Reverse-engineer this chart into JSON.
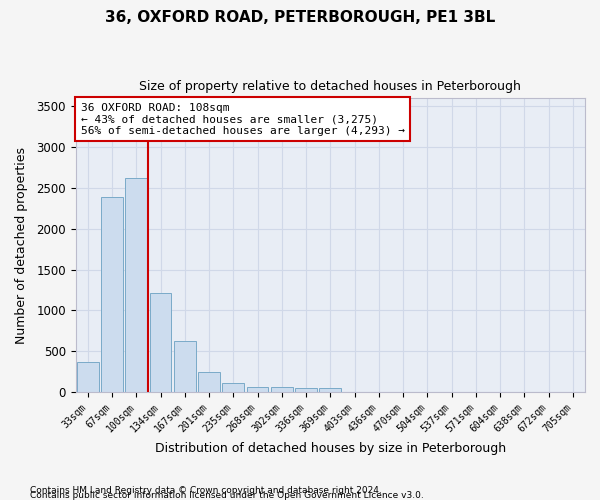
{
  "title1": "36, OXFORD ROAD, PETERBOROUGH, PE1 3BL",
  "title2": "Size of property relative to detached houses in Peterborough",
  "xlabel": "Distribution of detached houses by size in Peterborough",
  "ylabel": "Number of detached properties",
  "footnote1": "Contains HM Land Registry data © Crown copyright and database right 2024.",
  "footnote2": "Contains public sector information licensed under the Open Government Licence v3.0.",
  "bar_labels": [
    "33sqm",
    "67sqm",
    "100sqm",
    "134sqm",
    "167sqm",
    "201sqm",
    "235sqm",
    "268sqm",
    "302sqm",
    "336sqm",
    "369sqm",
    "403sqm",
    "436sqm",
    "470sqm",
    "504sqm",
    "537sqm",
    "571sqm",
    "604sqm",
    "638sqm",
    "672sqm",
    "705sqm"
  ],
  "bar_values": [
    370,
    2390,
    2620,
    1210,
    620,
    250,
    105,
    65,
    55,
    50,
    45,
    0,
    0,
    0,
    0,
    0,
    0,
    0,
    0,
    0,
    0
  ],
  "bar_color": "#ccdcee",
  "bar_edgecolor": "#7aaac8",
  "line_color": "#cc0000",
  "annotation_line1": "36 OXFORD ROAD: 108sqm",
  "annotation_line2": "← 43% of detached houses are smaller (3,275)",
  "annotation_line3": "56% of semi-detached houses are larger (4,293) →",
  "annotation_box_color": "#ffffff",
  "annotation_box_edgecolor": "#cc0000",
  "ylim": [
    0,
    3600
  ],
  "yticks": [
    0,
    500,
    1000,
    1500,
    2000,
    2500,
    3000,
    3500
  ],
  "grid_color": "#d0d8e8",
  "background_color": "#e8edf5",
  "fig_background": "#f5f5f5"
}
